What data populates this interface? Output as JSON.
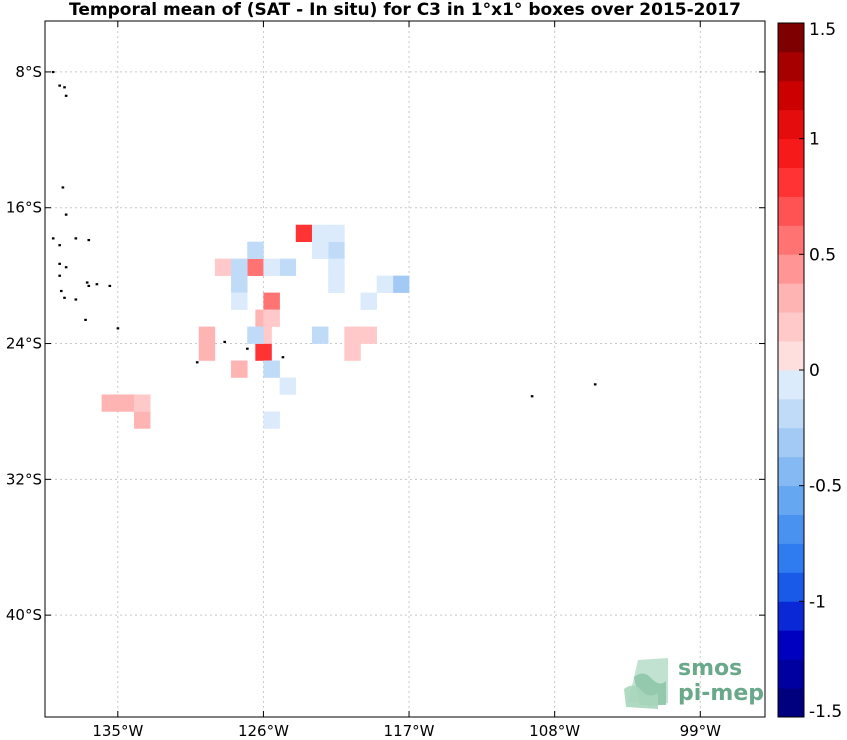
{
  "title": "Temporal mean of (SAT - In situ) for C3 in 1°x1° boxes over 2015-2017",
  "map": {
    "lon_range": [
      -139.5,
      -95
    ],
    "lat_range": [
      -46,
      -5
    ],
    "lon_ticks": [
      {
        "value": -135,
        "label": "135°W"
      },
      {
        "value": -126,
        "label": "126°W"
      },
      {
        "value": -117,
        "label": "117°W"
      },
      {
        "value": -108,
        "label": "108°W"
      },
      {
        "value": -99,
        "label": "99°W"
      }
    ],
    "lat_ticks": [
      {
        "value": -8,
        "label": "8°S"
      },
      {
        "value": -16,
        "label": "16°S"
      },
      {
        "value": -24,
        "label": "24°S"
      },
      {
        "value": -32,
        "label": "32°S"
      },
      {
        "value": -40,
        "label": "40°S"
      }
    ],
    "grid": true
  },
  "colorbar": {
    "min": -1.5,
    "max": 1.5,
    "levels": 24,
    "ticks": [
      {
        "value": 1.5,
        "label": "1.5"
      },
      {
        "value": 1,
        "label": "1"
      },
      {
        "value": 0.5,
        "label": "0.5"
      },
      {
        "value": 0,
        "label": "0"
      },
      {
        "value": -0.5,
        "label": "-0.5"
      },
      {
        "value": -1,
        "label": "-1"
      },
      {
        "value": -1.5,
        "label": "-1.5"
      }
    ]
  },
  "logo": {
    "line1": "smos",
    "line2": "pi-mep"
  },
  "chart_data": {
    "type": "heatmap",
    "cells": [
      {
        "lon": -126.0,
        "lat": -24.5,
        "value": 0.85
      },
      {
        "lon": -123.5,
        "lat": -17.5,
        "value": 0.75
      },
      {
        "lon": -126.5,
        "lat": -19.5,
        "value": 0.6
      },
      {
        "lon": -125.5,
        "lat": -21.5,
        "value": 0.5
      },
      {
        "lon": -135.5,
        "lat": -27.5,
        "value": 0.3
      },
      {
        "lon": -134.5,
        "lat": -27.5,
        "value": 0.3
      },
      {
        "lon": -133.5,
        "lat": -28.5,
        "value": 0.3
      },
      {
        "lon": -129.5,
        "lat": -23.5,
        "value": 0.3
      },
      {
        "lon": -129.5,
        "lat": -24.5,
        "value": 0.3
      },
      {
        "lon": -127.5,
        "lat": -25.5,
        "value": 0.3
      },
      {
        "lon": -126.0,
        "lat": -22.5,
        "value": 0.3
      },
      {
        "lon": -120.5,
        "lat": -23.5,
        "value": 0.2
      },
      {
        "lon": -119.5,
        "lat": -23.5,
        "value": 0.2
      },
      {
        "lon": -120.5,
        "lat": -24.5,
        "value": 0.2
      },
      {
        "lon": -128.5,
        "lat": -19.5,
        "value": 0.15
      },
      {
        "lon": -133.5,
        "lat": -27.5,
        "value": 0.15
      },
      {
        "lon": -125.5,
        "lat": -22.5,
        "value": 0.15
      },
      {
        "lon": -126.0,
        "lat": -23.5,
        "value": 0.15
      },
      {
        "lon": -126.5,
        "lat": -18.5,
        "value": -0.25
      },
      {
        "lon": -121.5,
        "lat": -18.5,
        "value": -0.25
      },
      {
        "lon": -127.5,
        "lat": -19.5,
        "value": -0.2
      },
      {
        "lon": -127.5,
        "lat": -20.5,
        "value": -0.2
      },
      {
        "lon": -124.5,
        "lat": -19.5,
        "value": -0.2
      },
      {
        "lon": -117.5,
        "lat": -20.5,
        "value": -0.3
      },
      {
        "lon": -125.5,
        "lat": -25.5,
        "value": -0.2
      },
      {
        "lon": -122.5,
        "lat": -17.5,
        "value": -0.1
      },
      {
        "lon": -121.5,
        "lat": -17.5,
        "value": -0.1
      },
      {
        "lon": -122.5,
        "lat": -18.5,
        "value": -0.1
      },
      {
        "lon": -121.5,
        "lat": -19.5,
        "value": -0.1
      },
      {
        "lon": -121.5,
        "lat": -20.5,
        "value": -0.1
      },
      {
        "lon": -125.5,
        "lat": -19.5,
        "value": -0.1
      },
      {
        "lon": -127.5,
        "lat": -21.5,
        "value": -0.1
      },
      {
        "lon": -126.5,
        "lat": -23.5,
        "value": -0.15
      },
      {
        "lon": -122.5,
        "lat": -23.5,
        "value": -0.15
      },
      {
        "lon": -118.5,
        "lat": -20.5,
        "value": -0.1
      },
      {
        "lon": -119.5,
        "lat": -21.5,
        "value": -0.1
      },
      {
        "lon": -124.5,
        "lat": -26.5,
        "value": -0.1
      },
      {
        "lon": -125.5,
        "lat": -28.5,
        "value": -0.1
      }
    ],
    "land": [
      {
        "lon": -139.0,
        "lat": -8.0
      },
      {
        "lon": -138.6,
        "lat": -8.8
      },
      {
        "lon": -138.3,
        "lat": -8.9
      },
      {
        "lon": -138.2,
        "lat": -9.4
      },
      {
        "lon": -138.4,
        "lat": -14.8
      },
      {
        "lon": -138.2,
        "lat": -16.4
      },
      {
        "lon": -139.0,
        "lat": -17.8
      },
      {
        "lon": -137.6,
        "lat": -17.8
      },
      {
        "lon": -136.8,
        "lat": -17.9
      },
      {
        "lon": -138.6,
        "lat": -18.2
      },
      {
        "lon": -138.6,
        "lat": -19.3
      },
      {
        "lon": -138.2,
        "lat": -19.5
      },
      {
        "lon": -138.6,
        "lat": -20.0
      },
      {
        "lon": -136.9,
        "lat": -20.4
      },
      {
        "lon": -136.3,
        "lat": -20.5
      },
      {
        "lon": -136.8,
        "lat": -20.6
      },
      {
        "lon": -135.5,
        "lat": -20.6
      },
      {
        "lon": -138.5,
        "lat": -20.9
      },
      {
        "lon": -138.3,
        "lat": -21.3
      },
      {
        "lon": -137.6,
        "lat": -21.4
      },
      {
        "lon": -137.0,
        "lat": -22.6
      },
      {
        "lon": -135.0,
        "lat": -23.1
      },
      {
        "lon": -128.4,
        "lat": -23.9
      },
      {
        "lon": -127.0,
        "lat": -24.3
      },
      {
        "lon": -124.8,
        "lat": -24.8
      },
      {
        "lon": -130.1,
        "lat": -25.1
      },
      {
        "lon": -109.4,
        "lat": -27.1
      },
      {
        "lon": -105.5,
        "lat": -26.4
      }
    ]
  }
}
